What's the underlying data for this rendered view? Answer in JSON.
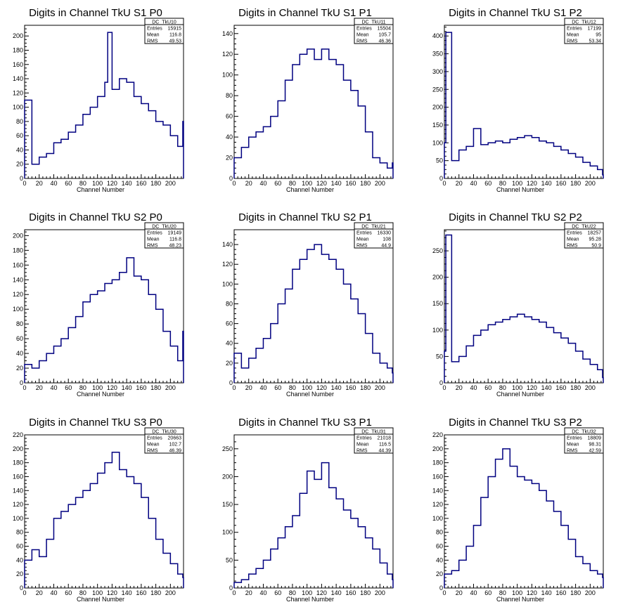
{
  "chart_data": [
    {
      "type": "histogram",
      "title": "Digits in Channel TkU S1 P0",
      "xlabel": "Channel Number",
      "xlim": [
        0,
        218
      ],
      "ylim": [
        0,
        215
      ],
      "xticks": [
        0,
        20,
        40,
        60,
        80,
        100,
        120,
        140,
        160,
        180,
        200
      ],
      "yticks": [
        0,
        20,
        40,
        60,
        80,
        100,
        120,
        140,
        160,
        180,
        200
      ],
      "grid": false,
      "legend": "top-right",
      "stats": {
        "name": "DC_TkU10",
        "rows": [
          {
            "label": "Entries",
            "value": "15915"
          },
          {
            "label": "Mean",
            "value": "116.8"
          },
          {
            "label": "RMS",
            "value": "49.53"
          }
        ]
      },
      "x": [
        0,
        10,
        20,
        30,
        40,
        50,
        60,
        70,
        80,
        90,
        100,
        110,
        114,
        120,
        130,
        140,
        150,
        160,
        170,
        180,
        190,
        200,
        210,
        217
      ],
      "values": [
        110,
        20,
        30,
        35,
        50,
        55,
        65,
        75,
        90,
        100,
        115,
        135,
        205,
        125,
        140,
        135,
        115,
        105,
        95,
        80,
        75,
        60,
        45,
        80
      ]
    },
    {
      "type": "histogram",
      "title": "Digits in Channel TkU S1 P1",
      "xlabel": "Channel Number",
      "xlim": [
        0,
        218
      ],
      "ylim": [
        0,
        148
      ],
      "xticks": [
        0,
        20,
        40,
        60,
        80,
        100,
        120,
        140,
        160,
        180,
        200
      ],
      "yticks": [
        0,
        20,
        40,
        60,
        80,
        100,
        120,
        140
      ],
      "grid": false,
      "legend": "top-right",
      "stats": {
        "name": "DC_TkU11",
        "rows": [
          {
            "label": "Entries",
            "value": "15504"
          },
          {
            "label": "Mean",
            "value": "105.7"
          },
          {
            "label": "RMS",
            "value": "46.36"
          }
        ]
      },
      "x": [
        0,
        10,
        20,
        30,
        40,
        50,
        60,
        70,
        80,
        90,
        100,
        110,
        120,
        130,
        140,
        150,
        160,
        170,
        180,
        190,
        200,
        210,
        217
      ],
      "values": [
        20,
        30,
        40,
        45,
        50,
        60,
        75,
        95,
        110,
        120,
        125,
        115,
        125,
        115,
        110,
        95,
        85,
        70,
        45,
        20,
        15,
        10,
        15
      ]
    },
    {
      "type": "histogram",
      "title": "Digits in Channel TkU S1 P2",
      "xlabel": "Channel Number",
      "xlim": [
        0,
        218
      ],
      "ylim": [
        0,
        430
      ],
      "xticks": [
        0,
        20,
        40,
        60,
        80,
        100,
        120,
        140,
        160,
        180,
        200
      ],
      "yticks": [
        0,
        50,
        100,
        150,
        200,
        250,
        300,
        350,
        400
      ],
      "grid": false,
      "legend": "top-right",
      "stats": {
        "name": "DC_TkU12",
        "rows": [
          {
            "label": "Entries",
            "value": "17199"
          },
          {
            "label": "Mean",
            "value": "95"
          },
          {
            "label": "RMS",
            "value": "53.34"
          }
        ]
      },
      "x": [
        0,
        2,
        10,
        20,
        30,
        40,
        50,
        60,
        70,
        80,
        90,
        100,
        110,
        120,
        130,
        140,
        150,
        160,
        170,
        180,
        190,
        200,
        210,
        217
      ],
      "values": [
        100,
        410,
        50,
        80,
        90,
        140,
        95,
        100,
        105,
        100,
        110,
        115,
        120,
        115,
        105,
        100,
        90,
        80,
        70,
        60,
        45,
        35,
        25,
        10
      ]
    },
    {
      "type": "histogram",
      "title": "Digits in Channel TkU S2 P0",
      "xlabel": "Channel Number",
      "xlim": [
        0,
        218
      ],
      "ylim": [
        0,
        208
      ],
      "xticks": [
        0,
        20,
        40,
        60,
        80,
        100,
        120,
        140,
        160,
        180,
        200
      ],
      "yticks": [
        0,
        20,
        40,
        60,
        80,
        100,
        120,
        140,
        160,
        180,
        200
      ],
      "grid": false,
      "legend": "top-right",
      "stats": {
        "name": "DC_TkU20",
        "rows": [
          {
            "label": "Entries",
            "value": "19149"
          },
          {
            "label": "Mean",
            "value": "116.8"
          },
          {
            "label": "RMS",
            "value": "48.23"
          }
        ]
      },
      "x": [
        0,
        10,
        20,
        30,
        40,
        50,
        60,
        70,
        80,
        90,
        100,
        110,
        120,
        130,
        140,
        150,
        160,
        170,
        180,
        190,
        200,
        210,
        217
      ],
      "values": [
        25,
        20,
        30,
        40,
        50,
        60,
        75,
        90,
        110,
        120,
        125,
        135,
        140,
        150,
        170,
        145,
        140,
        120,
        100,
        70,
        50,
        30,
        70
      ]
    },
    {
      "type": "histogram",
      "title": "Digits in Channel TkU S2 P1",
      "xlabel": "Channel Number",
      "xlim": [
        0,
        218
      ],
      "ylim": [
        0,
        155
      ],
      "xticks": [
        0,
        20,
        40,
        60,
        80,
        100,
        120,
        140,
        160,
        180,
        200
      ],
      "yticks": [
        0,
        20,
        40,
        60,
        80,
        100,
        120,
        140
      ],
      "grid": false,
      "legend": "top-right",
      "stats": {
        "name": "DC_TkU21",
        "rows": [
          {
            "label": "Entries",
            "value": "16330"
          },
          {
            "label": "Mean",
            "value": "108"
          },
          {
            "label": "RMS",
            "value": "44.9"
          }
        ]
      },
      "x": [
        0,
        10,
        20,
        30,
        40,
        50,
        60,
        70,
        80,
        90,
        100,
        110,
        120,
        130,
        140,
        150,
        160,
        170,
        180,
        190,
        200,
        210,
        217
      ],
      "values": [
        30,
        15,
        25,
        35,
        45,
        60,
        80,
        95,
        115,
        125,
        135,
        140,
        130,
        125,
        115,
        100,
        85,
        70,
        50,
        30,
        20,
        15,
        10
      ]
    },
    {
      "type": "histogram",
      "title": "Digits in Channel TkU S2 P2",
      "xlabel": "Channel Number",
      "xlim": [
        0,
        218
      ],
      "ylim": [
        0,
        290
      ],
      "xticks": [
        0,
        20,
        40,
        60,
        80,
        100,
        120,
        140,
        160,
        180,
        200
      ],
      "yticks": [
        0,
        50,
        100,
        150,
        200,
        250
      ],
      "grid": false,
      "legend": "top-right",
      "stats": {
        "name": "DC_TkU22",
        "rows": [
          {
            "label": "Entries",
            "value": "18257"
          },
          {
            "label": "Mean",
            "value": "95.28"
          },
          {
            "label": "RMS",
            "value": "50.9"
          }
        ]
      },
      "x": [
        0,
        2,
        10,
        20,
        30,
        40,
        50,
        60,
        70,
        80,
        90,
        100,
        110,
        120,
        130,
        140,
        150,
        160,
        170,
        180,
        190,
        200,
        210,
        217
      ],
      "values": [
        60,
        280,
        40,
        50,
        70,
        90,
        100,
        110,
        115,
        120,
        125,
        130,
        125,
        120,
        115,
        105,
        95,
        85,
        75,
        60,
        45,
        35,
        25,
        10
      ]
    },
    {
      "type": "histogram",
      "title": "Digits in Channel TkU S3 P0",
      "xlabel": "Channel Number",
      "xlim": [
        0,
        218
      ],
      "ylim": [
        0,
        220
      ],
      "xticks": [
        0,
        20,
        40,
        60,
        80,
        100,
        120,
        140,
        160,
        180,
        200
      ],
      "yticks": [
        0,
        20,
        40,
        60,
        80,
        100,
        120,
        140,
        160,
        180,
        200,
        220
      ],
      "grid": false,
      "legend": "top-right",
      "stats": {
        "name": "DC_TkU30",
        "rows": [
          {
            "label": "Entries",
            "value": "20663"
          },
          {
            "label": "Mean",
            "value": "102.7"
          },
          {
            "label": "RMS",
            "value": "46.39"
          }
        ]
      },
      "x": [
        0,
        10,
        20,
        30,
        40,
        50,
        60,
        70,
        80,
        90,
        100,
        110,
        120,
        130,
        140,
        150,
        160,
        170,
        180,
        190,
        200,
        210,
        217
      ],
      "values": [
        40,
        55,
        45,
        70,
        100,
        110,
        120,
        130,
        140,
        150,
        165,
        180,
        195,
        170,
        160,
        150,
        130,
        100,
        70,
        50,
        35,
        20,
        15
      ]
    },
    {
      "type": "histogram",
      "title": "Digits in Channel TkU S3 P1",
      "xlabel": "Channel Number",
      "xlim": [
        0,
        218
      ],
      "ylim": [
        0,
        275
      ],
      "xticks": [
        0,
        20,
        40,
        60,
        80,
        100,
        120,
        140,
        160,
        180,
        200
      ],
      "yticks": [
        0,
        50,
        100,
        150,
        200,
        250
      ],
      "grid": false,
      "legend": "top-right",
      "stats": {
        "name": "DC_TkU31",
        "rows": [
          {
            "label": "Entries",
            "value": "21018"
          },
          {
            "label": "Mean",
            "value": "116.5"
          },
          {
            "label": "RMS",
            "value": "44.39"
          }
        ]
      },
      "x": [
        0,
        10,
        20,
        30,
        40,
        50,
        60,
        70,
        80,
        90,
        100,
        110,
        120,
        130,
        140,
        150,
        160,
        170,
        180,
        190,
        200,
        210,
        217
      ],
      "values": [
        10,
        15,
        25,
        35,
        50,
        70,
        90,
        110,
        130,
        170,
        210,
        195,
        225,
        180,
        160,
        140,
        125,
        110,
        90,
        70,
        45,
        25,
        15
      ]
    },
    {
      "type": "histogram",
      "title": "Digits in Channel TkU S3 P2",
      "xlabel": "Channel Number",
      "xlim": [
        0,
        218
      ],
      "ylim": [
        0,
        220
      ],
      "xticks": [
        0,
        20,
        40,
        60,
        80,
        100,
        120,
        140,
        160,
        180,
        200
      ],
      "yticks": [
        0,
        20,
        40,
        60,
        80,
        100,
        120,
        140,
        160,
        180,
        200,
        220
      ],
      "grid": false,
      "legend": "top-right",
      "stats": {
        "name": "DC_TkU32",
        "rows": [
          {
            "label": "Entries",
            "value": "18809"
          },
          {
            "label": "Mean",
            "value": "98.31"
          },
          {
            "label": "RMS",
            "value": "42.59"
          }
        ]
      },
      "x": [
        0,
        10,
        20,
        30,
        40,
        50,
        60,
        70,
        80,
        90,
        100,
        110,
        120,
        130,
        140,
        150,
        160,
        170,
        180,
        190,
        200,
        210,
        217
      ],
      "values": [
        20,
        25,
        40,
        60,
        90,
        130,
        160,
        185,
        200,
        175,
        160,
        155,
        150,
        140,
        125,
        110,
        90,
        70,
        45,
        35,
        25,
        20,
        15
      ]
    }
  ]
}
